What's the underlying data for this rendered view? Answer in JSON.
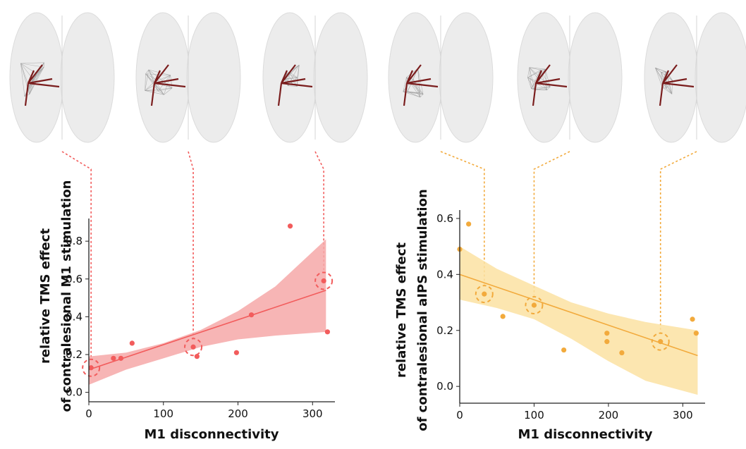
{
  "chart_data": [
    {
      "type": "scatter",
      "xlabel": "M1 disconnectivity",
      "ylabel_lines": [
        "relative TMS effect",
        "of contralesional M1 stimulation"
      ],
      "xlim": [
        0,
        330
      ],
      "ylim": [
        -0.05,
        0.92
      ],
      "xticks": [
        "0",
        "100",
        "200",
        "300"
      ],
      "yticks": [
        "0.0",
        "0.2",
        "0.4",
        "0.6",
        "0.8"
      ],
      "color": "#f25c5c",
      "band_color": "#f6a8a8",
      "points": [
        {
          "x": 3,
          "y": 0.13
        },
        {
          "x": 33,
          "y": 0.18
        },
        {
          "x": 43,
          "y": 0.18
        },
        {
          "x": 58,
          "y": 0.26
        },
        {
          "x": 140,
          "y": 0.24
        },
        {
          "x": 145,
          "y": 0.19
        },
        {
          "x": 198,
          "y": 0.21
        },
        {
          "x": 218,
          "y": 0.41
        },
        {
          "x": 270,
          "y": 0.88
        },
        {
          "x": 315,
          "y": 0.59
        },
        {
          "x": 320,
          "y": 0.32
        }
      ],
      "fit": {
        "x": [
          0,
          318
        ],
        "y": [
          0.12,
          0.54
        ]
      },
      "ci_band": {
        "x": [
          0,
          50,
          100,
          150,
          200,
          250,
          318
        ],
        "upper": [
          0.19,
          0.21,
          0.26,
          0.33,
          0.43,
          0.56,
          0.81
        ],
        "lower": [
          0.04,
          0.12,
          0.18,
          0.24,
          0.28,
          0.3,
          0.32
        ]
      },
      "highlighted": [
        {
          "x": 3,
          "y": 0.13
        },
        {
          "x": 140,
          "y": 0.24
        },
        {
          "x": 315,
          "y": 0.59
        }
      ]
    },
    {
      "type": "scatter",
      "xlabel": "M1 disconnectivity",
      "ylabel_lines": [
        "relative TMS effect",
        "of contralesional aIPS stimulation"
      ],
      "xlim": [
        0,
        330
      ],
      "ylim": [
        -0.06,
        0.63
      ],
      "xticks": [
        "0",
        "100",
        "200",
        "300"
      ],
      "yticks": [
        "0.0",
        "0.2",
        "0.4",
        "0.6"
      ],
      "color": "#f2aa3c",
      "band_color": "#fbe2a2",
      "points": [
        {
          "x": 0,
          "y": 0.49
        },
        {
          "x": 12,
          "y": 0.58
        },
        {
          "x": 33,
          "y": 0.33
        },
        {
          "x": 58,
          "y": 0.25
        },
        {
          "x": 100,
          "y": 0.29
        },
        {
          "x": 140,
          "y": 0.13
        },
        {
          "x": 198,
          "y": 0.19
        },
        {
          "x": 198,
          "y": 0.16
        },
        {
          "x": 218,
          "y": 0.12
        },
        {
          "x": 270,
          "y": 0.16
        },
        {
          "x": 313,
          "y": 0.24
        },
        {
          "x": 318,
          "y": 0.19
        }
      ],
      "fit": {
        "x": [
          0,
          320
        ],
        "y": [
          0.4,
          0.11
        ]
      },
      "ci_band": {
        "x": [
          0,
          50,
          100,
          150,
          200,
          250,
          320
        ],
        "upper": [
          0.5,
          0.42,
          0.36,
          0.3,
          0.26,
          0.23,
          0.2
        ],
        "lower": [
          0.31,
          0.28,
          0.24,
          0.17,
          0.09,
          0.02,
          -0.03
        ]
      },
      "highlighted": [
        {
          "x": 33,
          "y": 0.33
        },
        {
          "x": 100,
          "y": 0.29
        },
        {
          "x": 270,
          "y": 0.16
        }
      ]
    }
  ],
  "brains": [
    {
      "chart": 0
    },
    {
      "chart": 0
    },
    {
      "chart": 0
    },
    {
      "chart": 1
    },
    {
      "chart": 1
    },
    {
      "chart": 1
    }
  ],
  "colors": {
    "connection": "#7a1d1d",
    "brain": "#ececec",
    "network": "#9a9a9a"
  }
}
